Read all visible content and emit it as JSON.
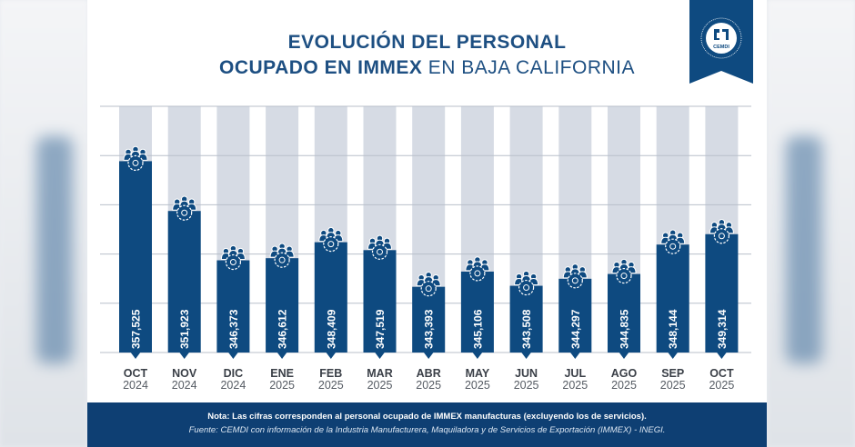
{
  "header": {
    "title_line1": "EVOLUCIÓN DEL PERSONAL",
    "title_line2_bold": "OCUPADO EN IMMEX",
    "title_line2_thin": " EN BAJA CALIFORNIA",
    "logo_text": "CEMDI"
  },
  "footer": {
    "note": "Nota: Las cifras corresponden al personal ocupado de IMMEX manufacturas (excluyendo los de servicios).",
    "source": "Fuente: CEMDI con información de la Industria Manufacturera, Maquiladora y de Servicios de Exportación (IMMEX) - INEGI."
  },
  "colors": {
    "bar": "#0e4a80",
    "track": "#d6dbe4",
    "title": "#1d4f82",
    "footer": "#0e3f73"
  },
  "chart_data": {
    "type": "bar",
    "title": "EVOLUCIÓN DEL PERSONAL OCUPADO EN IMMEX EN BAJA CALIFORNIA",
    "categories": [
      [
        "OCT",
        "2024"
      ],
      [
        "NOV",
        "2024"
      ],
      [
        "DIC",
        "2024"
      ],
      [
        "ENE",
        "2025"
      ],
      [
        "FEB",
        "2025"
      ],
      [
        "MAR",
        "2025"
      ],
      [
        "ABR",
        "2025"
      ],
      [
        "MAY",
        "2025"
      ],
      [
        "JUN",
        "2025"
      ],
      [
        "JUL",
        "2025"
      ],
      [
        "AGO",
        "2025"
      ],
      [
        "SEP",
        "2025"
      ],
      [
        "OCT",
        "2025"
      ]
    ],
    "values": [
      357525,
      351923,
      346373,
      346612,
      348409,
      347519,
      343393,
      345106,
      343508,
      344297,
      344835,
      348144,
      349314
    ],
    "labels": [
      "357,525",
      "351,923",
      "346,373",
      "346,612",
      "348,409",
      "347,519",
      "343,393",
      "345,106",
      "343,508",
      "344,297",
      "344,835",
      "348,144",
      "349,314"
    ],
    "xlabel": "",
    "ylabel": "",
    "ylim": [
      336000,
      363700
    ],
    "grid": true
  }
}
